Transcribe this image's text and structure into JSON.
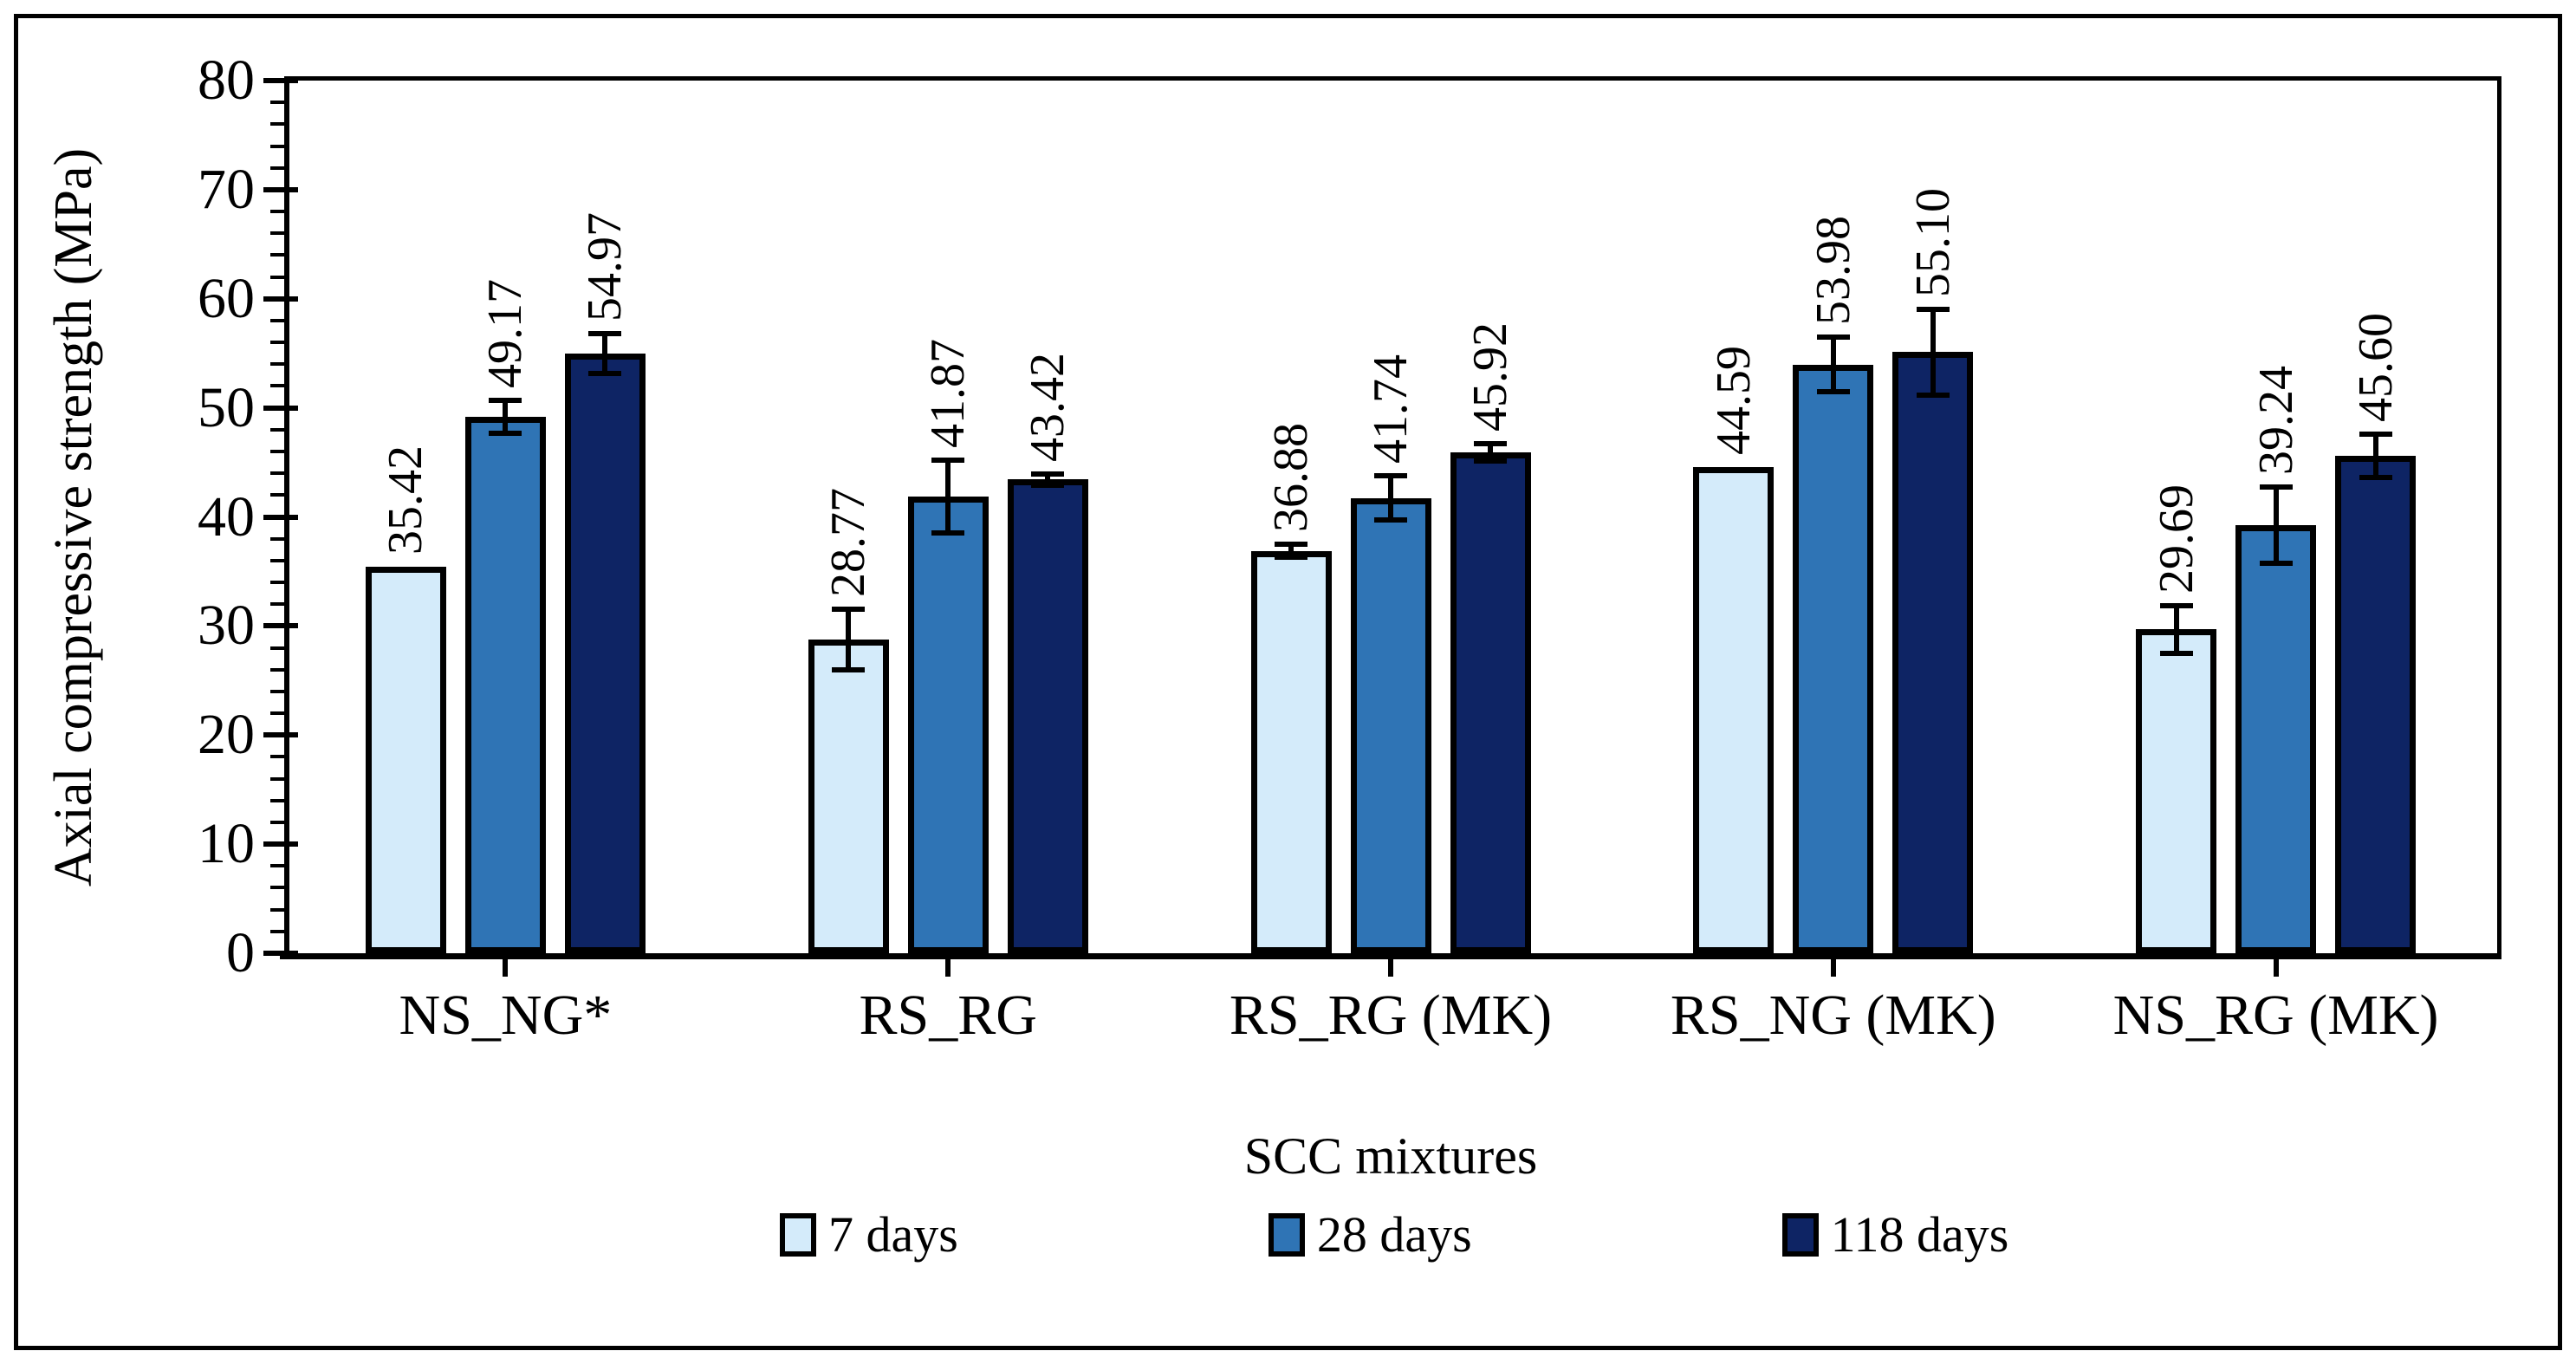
{
  "figure": {
    "background": "#ffffff",
    "border_color": "#000000"
  },
  "chart_data": {
    "type": "bar",
    "title": "",
    "xlabel": "SCC mixtures",
    "ylabel": "Axial compressive strength (MPa)",
    "ylim": [
      0,
      80
    ],
    "ytick_step": 10,
    "yminor_step": 2,
    "grid": false,
    "legend_position": "bottom",
    "bar_outline_color": "#000000",
    "error_bar_color": "#000000",
    "categories": [
      "NS_NG*",
      "RS_RG",
      "RS_RG (MK)",
      "RS_NG (MK)",
      "NS_RG (MK)"
    ],
    "series": [
      {
        "name": "7 days",
        "color": "#D4EBFA",
        "values": [
          35.42,
          28.77,
          36.88,
          44.59,
          29.69
        ],
        "error_bars": [
          0,
          2.8,
          0.6,
          0,
          2.2
        ]
      },
      {
        "name": "28 days",
        "color": "#2F74B5",
        "values": [
          49.17,
          41.87,
          41.74,
          53.98,
          39.24
        ],
        "error_bars": [
          1.5,
          3.3,
          2.0,
          2.5,
          3.5
        ]
      },
      {
        "name": "118 days",
        "color": "#0E2464",
        "values": [
          54.97,
          43.42,
          45.92,
          55.1,
          45.6
        ],
        "error_bars": [
          1.8,
          0.5,
          0.8,
          3.9,
          2.0
        ]
      }
    ],
    "value_labels": {
      "decimals": 2,
      "rotation": -90
    }
  }
}
